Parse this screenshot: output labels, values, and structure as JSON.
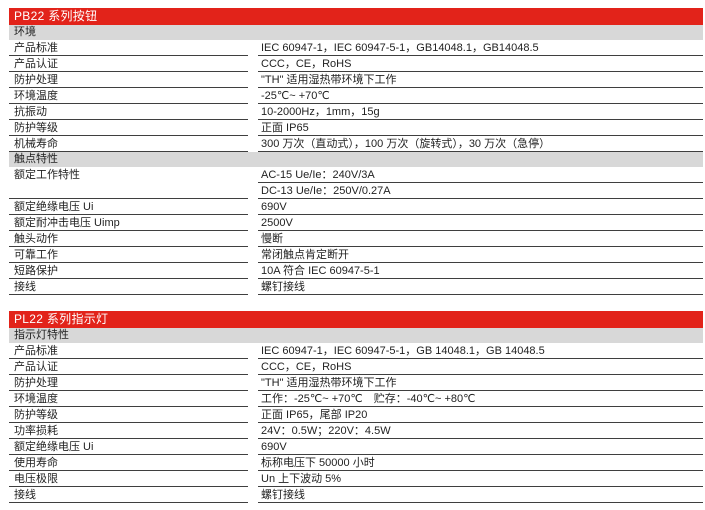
{
  "colors": {
    "accent_red": "#e2231a",
    "section_gray": "#d8d8d8",
    "row_border": "#3f3f3f",
    "title_text": "#ffffff",
    "body_text": "#1f1f1f"
  },
  "tables": [
    {
      "title": "PB22 系列按钮",
      "sections": [
        {
          "header": "环境",
          "rows": [
            {
              "label": "产品标准",
              "values": [
                "IEC 60947-1，IEC 60947-5-1，GB14048.1，GB14048.5"
              ]
            },
            {
              "label": "产品认证",
              "values": [
                "CCC，CE，RoHS"
              ]
            },
            {
              "label": "防护处理",
              "values": [
                "\"TH\" 适用湿热带环境下工作"
              ]
            },
            {
              "label": "环境温度",
              "values": [
                "-25℃~ +70℃"
              ]
            },
            {
              "label": "抗振动",
              "values": [
                "10-2000Hz，1mm，15g"
              ]
            },
            {
              "label": "防护等级",
              "values": [
                "正面 IP65"
              ]
            },
            {
              "label": "机械寿命",
              "values": [
                "300 万次（直动式），100 万次（旋转式），30 万次（急停）"
              ]
            }
          ]
        },
        {
          "header": "触点特性",
          "rows": [
            {
              "label": "额定工作特性",
              "values": [
                "AC-15 Ue/Ie：240V/3A",
                "DC-13 Ue/Ie：250V/0.27A"
              ]
            },
            {
              "label": "额定绝缘电压 Ui",
              "values": [
                "690V"
              ]
            },
            {
              "label": "额定耐冲击电压 Uimp",
              "values": [
                "2500V"
              ]
            },
            {
              "label": "触头动作",
              "values": [
                "慢断"
              ]
            },
            {
              "label": "可靠工作",
              "values": [
                "常闭触点肯定断开"
              ]
            },
            {
              "label": "短路保护",
              "values": [
                "10A 符合 IEC 60947-5-1"
              ]
            },
            {
              "label": "接线",
              "values": [
                "螺钉接线"
              ]
            }
          ]
        }
      ]
    },
    {
      "title": "PL22 系列指示灯",
      "sections": [
        {
          "header": "指示灯特性",
          "rows": [
            {
              "label": "产品标准",
              "values": [
                "IEC 60947-1，IEC 60947-5-1，GB 14048.1，GB 14048.5"
              ]
            },
            {
              "label": "产品认证",
              "values": [
                "CCC，CE，RoHS"
              ]
            },
            {
              "label": "防护处理",
              "values": [
                "\"TH\" 适用湿热带环境下工作"
              ]
            },
            {
              "label": "环境温度",
              "values": [
                "工作：-25℃~ +70℃　贮存：-40℃~ +80℃"
              ]
            },
            {
              "label": "防护等级",
              "values": [
                "正面 IP65，尾部 IP20"
              ]
            },
            {
              "label": "功率损耗",
              "values": [
                "24V：0.5W；220V：4.5W"
              ]
            },
            {
              "label": "额定绝缘电压 Ui",
              "values": [
                "690V"
              ]
            },
            {
              "label": "使用寿命",
              "values": [
                "标称电压下 50000 小时"
              ]
            },
            {
              "label": "电压极限",
              "values": [
                "Un 上下波动 5%"
              ]
            },
            {
              "label": "接线",
              "values": [
                "螺钉接线"
              ]
            }
          ]
        }
      ]
    }
  ]
}
